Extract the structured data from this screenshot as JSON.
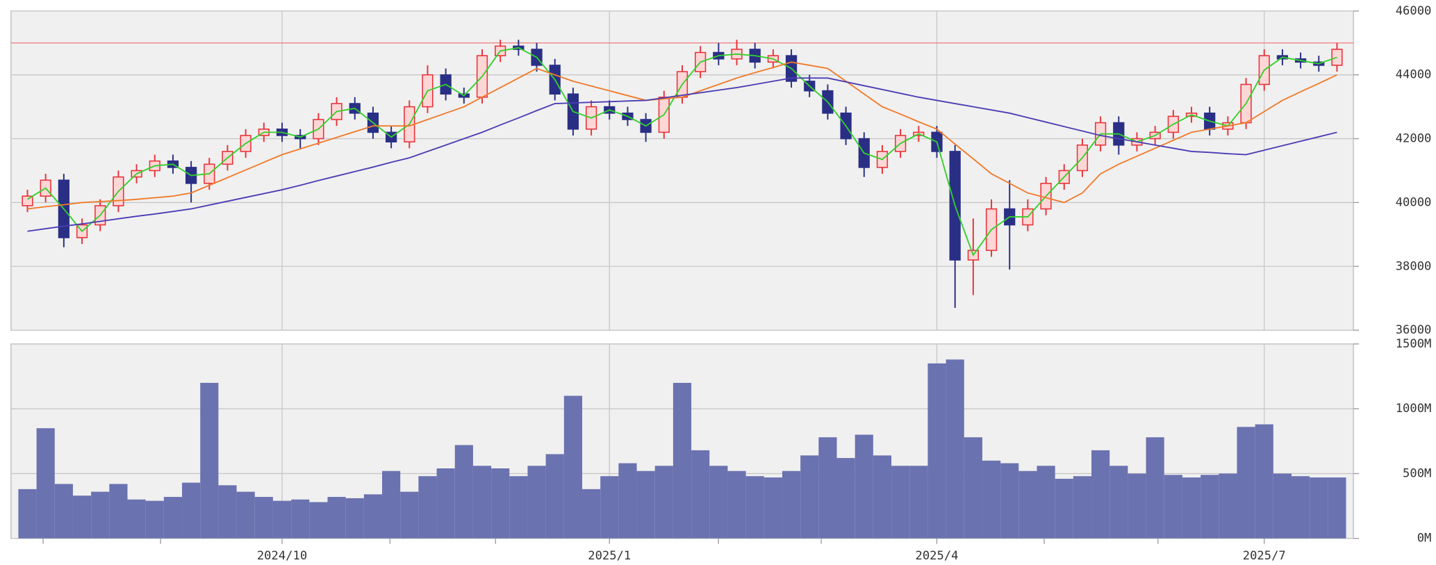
{
  "chart_data": [
    {
      "type": "candlestick",
      "open": [
        39900,
        40200,
        40700,
        38900,
        39300,
        39900,
        40800,
        41000,
        41300,
        41100,
        40600,
        41200,
        41600,
        42100,
        42300,
        42100,
        42000,
        42600,
        43100,
        42800,
        42200,
        41900,
        43000,
        44000,
        43400,
        43300,
        44600,
        44900,
        44800,
        44300,
        43400,
        42300,
        43000,
        42800,
        42600,
        42200,
        43300,
        44100,
        44700,
        44500,
        44800,
        44400,
        44600,
        43800,
        43500,
        42800,
        42000,
        41100,
        41600,
        42100,
        42200,
        41600,
        38200,
        38500,
        39800,
        39300,
        39800,
        40600,
        41000,
        41800,
        42500,
        41800,
        42000,
        42200,
        42700,
        42800,
        42300,
        42500,
        43700,
        44600,
        44500,
        44400,
        44300
      ],
      "high": [
        40400,
        40900,
        40900,
        39500,
        40100,
        41000,
        41200,
        41500,
        41500,
        41300,
        41400,
        41800,
        42300,
        42500,
        42500,
        42300,
        42800,
        43300,
        43300,
        43000,
        42400,
        43200,
        44300,
        44200,
        43600,
        44800,
        45100,
        45100,
        45000,
        44500,
        43600,
        43200,
        43200,
        43000,
        42800,
        43500,
        44300,
        44900,
        45000,
        45100,
        45000,
        44800,
        44800,
        44000,
        43700,
        43000,
        42200,
        41800,
        42300,
        42400,
        42400,
        41800,
        39500,
        40100,
        40700,
        40100,
        40800,
        41200,
        42000,
        42700,
        42700,
        42200,
        42400,
        42900,
        43000,
        43000,
        42700,
        43900,
        44800,
        44800,
        44700,
        44600,
        45000
      ],
      "low": [
        39700,
        40000,
        38600,
        38700,
        39100,
        39700,
        40600,
        40800,
        40900,
        40000,
        40400,
        41000,
        41400,
        41900,
        41900,
        41700,
        41800,
        42400,
        42600,
        42000,
        41700,
        41700,
        42800,
        43200,
        43100,
        43100,
        44400,
        44600,
        44100,
        43200,
        42100,
        42100,
        42600,
        42400,
        41900,
        42000,
        43100,
        43900,
        44300,
        44300,
        44200,
        44200,
        43600,
        43300,
        42600,
        41800,
        40800,
        40900,
        41400,
        41900,
        41400,
        36700,
        37100,
        38300,
        37900,
        39100,
        39600,
        40400,
        40800,
        41600,
        41500,
        41600,
        41800,
        42000,
        42500,
        42100,
        42100,
        42300,
        43500,
        44300,
        44200,
        44100,
        44100
      ],
      "close": [
        40200,
        40700,
        38900,
        39300,
        39900,
        40800,
        41000,
        41300,
        41100,
        40600,
        41200,
        41600,
        42100,
        42300,
        42100,
        42000,
        42600,
        43100,
        42800,
        42200,
        41900,
        43000,
        44000,
        43400,
        43300,
        44600,
        44900,
        44800,
        44300,
        43400,
        42300,
        43000,
        42800,
        42600,
        42200,
        43300,
        44100,
        44700,
        44500,
        44800,
        44400,
        44600,
        43800,
        43500,
        42800,
        42000,
        41100,
        41600,
        42100,
        42200,
        41600,
        38200,
        38500,
        39800,
        39300,
        39800,
        40600,
        41000,
        41800,
        42500,
        41800,
        42000,
        42200,
        42700,
        42800,
        42300,
        42500,
        43700,
        44600,
        44500,
        44400,
        44300,
        44800
      ],
      "up_color": "#e8343a",
      "down_color": "#2a2f86",
      "lines": [
        {
          "color": "#32d02a",
          "values": [
            40100,
            40450,
            39800,
            39100,
            39600,
            40350,
            40900,
            41150,
            41200,
            40850,
            40900,
            41400,
            41850,
            42200,
            42200,
            42050,
            42300,
            42850,
            42950,
            42500,
            42050,
            42450,
            43500,
            43700,
            43350,
            43950,
            44750,
            44850,
            44550,
            43850,
            42850,
            42650,
            42900,
            42700,
            42400,
            42750,
            43700,
            44400,
            44600,
            44650,
            44600,
            44500,
            44200,
            43650,
            43150,
            42400,
            41550,
            41350,
            41850,
            42150,
            41900,
            39900,
            38350,
            39150,
            39550,
            39550,
            40200,
            40800,
            41400,
            42150,
            42150,
            41900,
            42100,
            42450,
            42750,
            42550,
            42400,
            43100,
            44150,
            44550,
            44450,
            44350,
            44550
          ]
        },
        {
          "color": "#f07a2a",
          "values": [
            39800,
            39870,
            39930,
            40000,
            40030,
            40060,
            40100,
            40150,
            40200,
            40300,
            40540,
            40780,
            41020,
            41260,
            41500,
            41680,
            41860,
            42040,
            42220,
            42400,
            42400,
            42400,
            42600,
            42800,
            43000,
            43300,
            43600,
            43900,
            44200,
            44000,
            43800,
            43650,
            43500,
            43350,
            43200,
            43250,
            43300,
            43500,
            43700,
            43900,
            44070,
            44230,
            44400,
            44300,
            44200,
            43800,
            43400,
            43000,
            42770,
            42530,
            42300,
            41830,
            41370,
            40900,
            40600,
            40300,
            40150,
            40000,
            40300,
            40900,
            41200,
            41450,
            41700,
            41950,
            42200,
            42300,
            42400,
            42500,
            42850,
            43200,
            43470,
            43730,
            44000
          ]
        },
        {
          "color": "#4a3cb4",
          "values": [
            39100,
            39180,
            39260,
            39330,
            39410,
            39490,
            39570,
            39640,
            39720,
            39800,
            39920,
            40040,
            40160,
            40280,
            40400,
            40540,
            40690,
            40830,
            40970,
            41110,
            41260,
            41400,
            41600,
            41800,
            42000,
            42200,
            42430,
            42650,
            42880,
            43100,
            43120,
            43140,
            43160,
            43180,
            43200,
            43280,
            43360,
            43440,
            43520,
            43600,
            43700,
            43800,
            43900,
            43900,
            43900,
            43780,
            43660,
            43540,
            43420,
            43300,
            43200,
            43100,
            43000,
            42900,
            42800,
            42660,
            42520,
            42380,
            42240,
            42100,
            42000,
            41900,
            41800,
            41700,
            41600,
            41570,
            41530,
            41500,
            41640,
            41780,
            41920,
            42060,
            42200
          ]
        }
      ],
      "reference_line": {
        "value": 45000,
        "color": "#f28c8c"
      },
      "ylim": [
        36000,
        46000
      ],
      "yticks": [
        36000,
        38000,
        40000,
        42000,
        44000,
        46000
      ],
      "grid": true
    },
    {
      "type": "bar",
      "categories": [
        null,
        null,
        null,
        null,
        null,
        null,
        null,
        null,
        null,
        null,
        null,
        null,
        null,
        null,
        "2024/10",
        null,
        null,
        null,
        null,
        null,
        null,
        null,
        null,
        null,
        null,
        null,
        null,
        null,
        null,
        null,
        null,
        null,
        "2025/1",
        null,
        null,
        null,
        null,
        null,
        null,
        null,
        null,
        null,
        null,
        null,
        null,
        null,
        null,
        null,
        null,
        null,
        "2025/4",
        null,
        null,
        null,
        null,
        null,
        null,
        null,
        null,
        null,
        null,
        null,
        null,
        null,
        null,
        null,
        null,
        null,
        "2025/7",
        null,
        null,
        null,
        null
      ],
      "values": [
        380,
        850,
        420,
        330,
        360,
        420,
        300,
        290,
        320,
        430,
        1200,
        410,
        360,
        320,
        290,
        300,
        280,
        320,
        310,
        340,
        520,
        360,
        480,
        540,
        720,
        560,
        540,
        480,
        560,
        650,
        1100,
        380,
        480,
        580,
        520,
        560,
        1200,
        680,
        560,
        520,
        480,
        470,
        520,
        640,
        780,
        620,
        800,
        640,
        560,
        560,
        1350,
        1380,
        780,
        600,
        580,
        520,
        560,
        460,
        480,
        680,
        560,
        500,
        780,
        490,
        470,
        490,
        500,
        860,
        880,
        500,
        480,
        470,
        470
      ],
      "color": "#6b72b0",
      "ylim": [
        0,
        1500
      ],
      "yticks": [
        {
          "value": 0,
          "label": "0M"
        },
        {
          "value": 500,
          "label": "500M"
        },
        {
          "value": 1000,
          "label": "1000M"
        },
        {
          "value": 1500,
          "label": "1500M"
        }
      ],
      "grid": true
    }
  ]
}
